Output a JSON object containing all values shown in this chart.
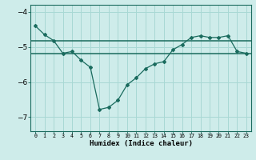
{
  "x": [
    0,
    1,
    2,
    3,
    4,
    5,
    6,
    7,
    8,
    9,
    10,
    11,
    12,
    13,
    14,
    15,
    16,
    17,
    18,
    19,
    20,
    21,
    22,
    23
  ],
  "y": [
    -4.4,
    -4.65,
    -4.82,
    -5.18,
    -5.13,
    -5.38,
    -5.58,
    -6.78,
    -6.72,
    -6.52,
    -6.08,
    -5.88,
    -5.62,
    -5.48,
    -5.42,
    -5.08,
    -4.93,
    -4.73,
    -4.68,
    -4.73,
    -4.73,
    -4.68,
    -5.13,
    -5.18
  ],
  "hline1": -4.82,
  "hline2": -5.18,
  "line_color": "#1a6b5e",
  "bg_color": "#ceecea",
  "grid_color": "#a8d8d4",
  "xlabel": "Humidex (Indice chaleur)",
  "ylim": [
    -7.4,
    -3.8
  ],
  "xlim": [
    -0.5,
    23.5
  ],
  "yticks": [
    -7,
    -6,
    -5,
    -4
  ],
  "xtick_labels": [
    "0",
    "1",
    "2",
    "3",
    "4",
    "5",
    "6",
    "7",
    "8",
    "9",
    "10",
    "11",
    "12",
    "13",
    "14",
    "15",
    "16",
    "17",
    "18",
    "19",
    "20",
    "21",
    "22",
    "23"
  ]
}
